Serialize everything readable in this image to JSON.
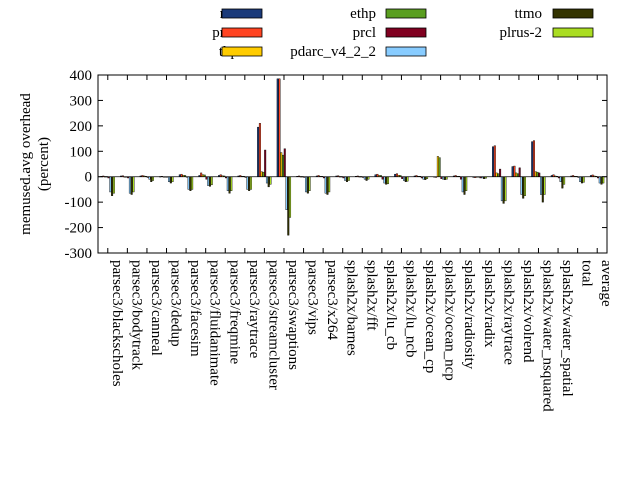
{
  "chart_data": {
    "type": "bar",
    "ylabel": "memused.avg overhead\n(percent)",
    "ylim": [
      -300,
      400
    ],
    "yticks": [
      400,
      300,
      200,
      100,
      0,
      -100,
      -200,
      -300
    ],
    "legend_placement": "top",
    "grid": false,
    "categories": [
      "parsec3/blackscholes",
      "parsec3/bodytrack",
      "parsec3/canneal",
      "parsec3/dedup",
      "parsec3/facesim",
      "parsec3/fluidanimate",
      "parsec3/freqmine",
      "parsec3/raytrace",
      "parsec3/streamcluster",
      "parsec3/swaptions",
      "parsec3/vips",
      "parsec3/x264",
      "splash2x/barnes",
      "splash2x/fft",
      "splash2x/lu_cb",
      "splash2x/lu_ncb",
      "splash2x/ocean_cp",
      "splash2x/ocean_ncp",
      "splash2x/radiosity",
      "splash2x/radix",
      "splash2x/raytrace",
      "splash2x/volrend",
      "splash2x/water_nsquared",
      "splash2x/water_spatial",
      "total",
      "average"
    ],
    "series": [
      {
        "name": "rec",
        "color": "#1a3a7a",
        "values": [
          2,
          3,
          3,
          1,
          8,
          5,
          5,
          3,
          195,
          385,
          2,
          3,
          3,
          2,
          8,
          10,
          3,
          -2,
          3,
          -3,
          118,
          40,
          138,
          5,
          3,
          5
        ]
      },
      {
        "name": "prec",
        "color": "#ff4422",
        "values": [
          3,
          4,
          5,
          2,
          10,
          15,
          8,
          5,
          210,
          385,
          3,
          5,
          4,
          3,
          10,
          12,
          5,
          -3,
          5,
          -4,
          122,
          42,
          142,
          8,
          5,
          7
        ]
      },
      {
        "name": "thp",
        "color": "#ffcc00",
        "values": [
          1,
          -2,
          3,
          0,
          6,
          8,
          4,
          2,
          20,
          95,
          1,
          2,
          1,
          1,
          5,
          6,
          2,
          80,
          2,
          -2,
          15,
          15,
          20,
          3,
          2,
          3
        ]
      },
      {
        "name": "ethp",
        "color": "#5a9e20",
        "values": [
          1,
          -2,
          2,
          0,
          5,
          7,
          3,
          2,
          18,
          85,
          1,
          2,
          1,
          1,
          5,
          5,
          2,
          75,
          2,
          -2,
          12,
          12,
          18,
          2,
          2,
          2
        ]
      },
      {
        "name": "prcl",
        "color": "#800020",
        "values": [
          -5,
          -5,
          -3,
          -2,
          -2,
          -10,
          -5,
          -3,
          105,
          110,
          -3,
          -5,
          -5,
          -3,
          -10,
          -8,
          -5,
          -8,
          -10,
          -5,
          30,
          35,
          15,
          -5,
          -3,
          -5
        ]
      },
      {
        "name": "pdarc_v4_2_2",
        "color": "#88ccff",
        "values": [
          -60,
          -65,
          -10,
          -20,
          -50,
          -35,
          -55,
          -50,
          -25,
          -130,
          -60,
          -65,
          -15,
          -10,
          -25,
          -15,
          -10,
          -10,
          -60,
          -5,
          -95,
          -70,
          -70,
          -20,
          -20,
          -25
        ]
      },
      {
        "name": "ttmo",
        "color": "#333300",
        "values": [
          -75,
          -70,
          -20,
          -25,
          -55,
          -38,
          -65,
          -55,
          -40,
          -230,
          -65,
          -70,
          -20,
          -15,
          -30,
          -20,
          -12,
          -12,
          -70,
          -8,
          -105,
          -85,
          -100,
          -45,
          -25,
          -30
        ]
      },
      {
        "name": "plrus-2",
        "color": "#aadd22",
        "values": [
          -65,
          -60,
          -15,
          -20,
          -50,
          -32,
          -55,
          -50,
          -30,
          -160,
          -55,
          -60,
          -15,
          -10,
          -28,
          -18,
          -8,
          -10,
          -55,
          -6,
          -95,
          -75,
          -70,
          -30,
          -22,
          -25
        ]
      }
    ]
  }
}
